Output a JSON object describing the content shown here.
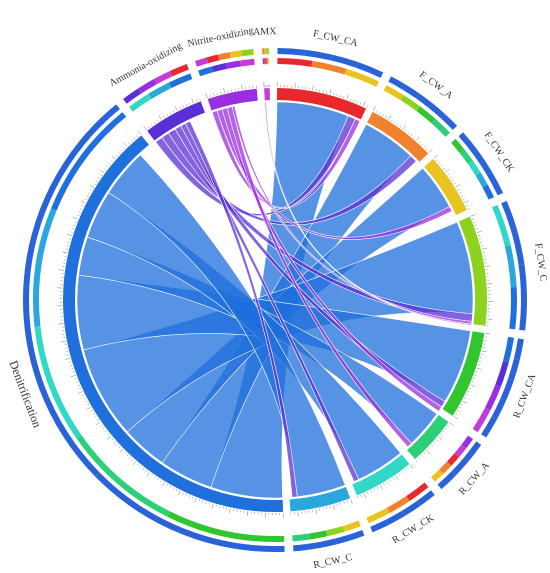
{
  "chart_data": {
    "type": "chord",
    "segments": [
      {
        "name": "F_CW_CA",
        "value": 33000,
        "color": "#e8282b"
      },
      {
        "name": "F_CW_A",
        "value": 25000,
        "color": "#f0822d"
      },
      {
        "name": "F_CW_CK",
        "value": 22000,
        "color": "#e9c31f"
      },
      {
        "name": "F_CW_C",
        "value": 40000,
        "color": "#8cd21e"
      },
      {
        "name": "R_CW_CA",
        "value": 32000,
        "color": "#31c62e"
      },
      {
        "name": "R_CW_A",
        "value": 18000,
        "color": "#2ecf79"
      },
      {
        "name": "R_CW_CK",
        "value": 22000,
        "color": "#31d8c6"
      },
      {
        "name": "R_CW_C",
        "value": 22000,
        "color": "#2aa8de"
      },
      {
        "name": "Denitrification",
        "value": 190000,
        "color": "#1f6fdc"
      },
      {
        "name": "Ammonia-oxidizing",
        "value": 22000,
        "color": "#5b2fd6"
      },
      {
        "name": "Nitrite-oxidizing",
        "value": 18000,
        "color": "#9a2ee0"
      },
      {
        "name": "AMX",
        "value": 2000,
        "color": "#c53bd8"
      }
    ],
    "links": [
      {
        "source": "Denitrification",
        "target": "F_CW_CA",
        "value": 28000
      },
      {
        "source": "Denitrification",
        "target": "F_CW_A",
        "value": 21000
      },
      {
        "source": "Denitrification",
        "target": "F_CW_CK",
        "value": 18000
      },
      {
        "source": "Denitrification",
        "target": "F_CW_C",
        "value": 36000
      },
      {
        "source": "Denitrification",
        "target": "R_CW_CA",
        "value": 29000
      },
      {
        "source": "Denitrification",
        "target": "R_CW_A",
        "value": 15000
      },
      {
        "source": "Denitrification",
        "target": "R_CW_CK",
        "value": 19000
      },
      {
        "source": "Denitrification",
        "target": "R_CW_C",
        "value": 19000
      },
      {
        "source": "Ammonia-oxidizing",
        "target": "F_CW_CA",
        "value": 3000
      },
      {
        "source": "Ammonia-oxidizing",
        "target": "F_CW_A",
        "value": 3000
      },
      {
        "source": "Ammonia-oxidizing",
        "target": "F_CW_C",
        "value": 3000
      },
      {
        "source": "Ammonia-oxidizing",
        "target": "R_CW_CA",
        "value": 2500
      },
      {
        "source": "Ammonia-oxidizing",
        "target": "R_CW_CK",
        "value": 2000
      },
      {
        "source": "Ammonia-oxidizing",
        "target": "R_CW_C",
        "value": 2000
      },
      {
        "source": "Nitrite-oxidizing",
        "target": "F_CW_CA",
        "value": 2000
      },
      {
        "source": "Nitrite-oxidizing",
        "target": "F_CW_CK",
        "value": 2000
      },
      {
        "source": "Nitrite-oxidizing",
        "target": "R_CW_CA",
        "value": 2000
      },
      {
        "source": "Nitrite-oxidizing",
        "target": "R_CW_A",
        "value": 2000
      },
      {
        "source": "Nitrite-oxidizing",
        "target": "F_CW_C",
        "value": 1000
      },
      {
        "source": "AMX",
        "target": "F_CW_C",
        "value": 500
      }
    ],
    "outer_ring_colors": [
      "#e8282b",
      "#f0822d",
      "#e9c31f",
      "#8cd21e",
      "#31c62e",
      "#2ecf79",
      "#31d8c6",
      "#2aa8de",
      "#1f6fdc",
      "#5b2fd6",
      "#9a2ee0",
      "#c53bd8"
    ],
    "percent_ticks": [
      "10%",
      "20%",
      "30%",
      "40%",
      "50%",
      "60%",
      "70%",
      "80%",
      "90%",
      "100%"
    ],
    "count_ticks": [
      "5000",
      "10000",
      "15000",
      "20000",
      "25000",
      "30000",
      "35000",
      "40000",
      "45000",
      "50000",
      "55000",
      "60000",
      "65000",
      "70000",
      "75000",
      "80000",
      "85000",
      "90000",
      "95000",
      "100000"
    ]
  }
}
